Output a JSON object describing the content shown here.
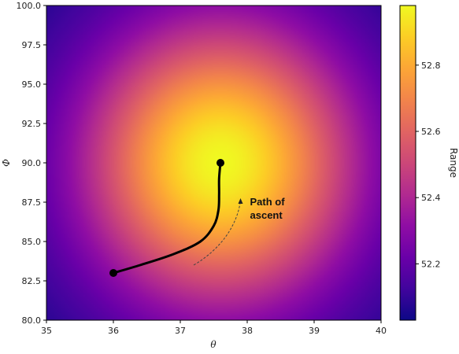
{
  "chart_data": {
    "type": "heatmap",
    "xlabel": "θ",
    "ylabel": "Φ",
    "xlim": [
      35,
      40
    ],
    "ylim": [
      80,
      100
    ],
    "x_ticks": [
      "35",
      "36",
      "37",
      "38",
      "39",
      "40"
    ],
    "y_ticks": [
      "80.0",
      "82.5",
      "85.0",
      "87.5",
      "90.0",
      "92.5",
      "95.0",
      "97.5",
      "100.0"
    ],
    "colormap": "plasma",
    "colorbar": {
      "label": "Range",
      "range": [
        52.03,
        52.98
      ],
      "ticks": [
        "52.2",
        "52.4",
        "52.6",
        "52.8"
      ]
    },
    "field_model": {
      "max_value": 52.98,
      "peak": [
        37.6,
        90.0
      ],
      "min_value": 52.03
    },
    "path": {
      "start": [
        36.0,
        83.0
      ],
      "end": [
        37.6,
        90.0
      ],
      "points": [
        [
          36.0,
          83.0
        ],
        [
          36.4,
          83.5
        ],
        [
          36.9,
          84.2
        ],
        [
          37.3,
          85.0
        ],
        [
          37.5,
          86.0
        ],
        [
          37.57,
          87.0
        ],
        [
          37.58,
          88.0
        ],
        [
          37.58,
          89.0
        ],
        [
          37.6,
          90.0
        ]
      ]
    },
    "annotation": {
      "text_line1": "Path of",
      "text_line2": "ascent",
      "arrow_points": [
        [
          37.2,
          83.5
        ],
        [
          37.6,
          84.5
        ],
        [
          37.85,
          86.0
        ],
        [
          37.9,
          87.6
        ]
      ]
    }
  }
}
